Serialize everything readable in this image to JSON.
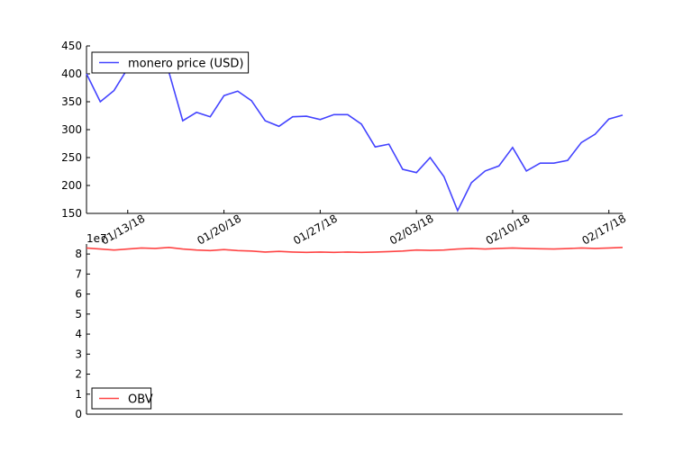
{
  "chart_data": [
    {
      "type": "line",
      "x": [
        "01/10/18",
        "01/11/18",
        "01/12/18",
        "01/13/18",
        "01/14/18",
        "01/15/18",
        "01/16/18",
        "01/17/18",
        "01/18/18",
        "01/19/18",
        "01/20/18",
        "01/21/18",
        "01/22/18",
        "01/23/18",
        "01/24/18",
        "01/25/18",
        "01/26/18",
        "01/27/18",
        "01/28/18",
        "01/29/18",
        "01/30/18",
        "01/31/18",
        "02/01/18",
        "02/02/18",
        "02/03/18",
        "02/04/18",
        "02/05/18",
        "02/06/18",
        "02/07/18",
        "02/08/18",
        "02/09/18",
        "02/10/18",
        "02/11/18",
        "02/12/18",
        "02/13/18",
        "02/14/18",
        "02/15/18",
        "02/16/18",
        "02/17/18",
        "02/18/18"
      ],
      "series": [
        {
          "name": "monero price (USD)",
          "color": "#4444ff",
          "values": [
            400,
            350,
            370,
            410,
            415,
            410,
            403,
            316,
            331,
            323,
            361,
            369,
            352,
            316,
            306,
            323,
            324,
            318,
            327,
            327,
            310,
            269,
            274,
            229,
            223,
            250,
            216,
            155,
            205,
            226,
            235,
            268,
            226,
            240,
            240,
            245,
            277,
            292,
            319,
            326
          ]
        }
      ],
      "xlim": [
        "01/10/18",
        "02/18/18"
      ],
      "xticks": [
        "01/13/18",
        "01/20/18",
        "01/27/18",
        "02/03/18",
        "02/10/18",
        "02/17/18"
      ],
      "ylim": [
        150,
        450
      ],
      "yticks": [
        150,
        200,
        250,
        300,
        350,
        400,
        450
      ],
      "legend": "upper left"
    },
    {
      "type": "line",
      "x": [
        "01/10/18",
        "01/11/18",
        "01/12/18",
        "01/13/18",
        "01/14/18",
        "01/15/18",
        "01/16/18",
        "01/17/18",
        "01/18/18",
        "01/19/18",
        "01/20/18",
        "01/21/18",
        "01/22/18",
        "01/23/18",
        "01/24/18",
        "01/25/18",
        "01/26/18",
        "01/27/18",
        "01/28/18",
        "01/29/18",
        "01/30/18",
        "01/31/18",
        "02/01/18",
        "02/02/18",
        "02/03/18",
        "02/04/18",
        "02/05/18",
        "02/06/18",
        "02/07/18",
        "02/08/18",
        "02/09/18",
        "02/10/18",
        "02/11/18",
        "02/12/18",
        "02/13/18",
        "02/14/18",
        "02/15/18",
        "02/16/18",
        "02/17/18",
        "02/18/18"
      ],
      "series": [
        {
          "name": "OBV",
          "color": "#ff4444",
          "values": [
            8.3,
            8.25,
            8.2,
            8.25,
            8.3,
            8.28,
            8.33,
            8.25,
            8.2,
            8.17,
            8.22,
            8.17,
            8.15,
            8.1,
            8.13,
            8.1,
            8.08,
            8.1,
            8.08,
            8.1,
            8.08,
            8.1,
            8.12,
            8.15,
            8.2,
            8.18,
            8.2,
            8.25,
            8.28,
            8.25,
            8.28,
            8.3,
            8.28,
            8.26,
            8.25,
            8.27,
            8.3,
            8.28,
            8.3,
            8.33
          ]
        }
      ],
      "offset_label": "1e7",
      "xlim": [
        "01/10/18",
        "02/18/18"
      ],
      "ylim": [
        0,
        8.5
      ],
      "yticks": [
        0,
        1,
        2,
        3,
        4,
        5,
        6,
        7,
        8
      ],
      "legend": "lower left"
    }
  ]
}
